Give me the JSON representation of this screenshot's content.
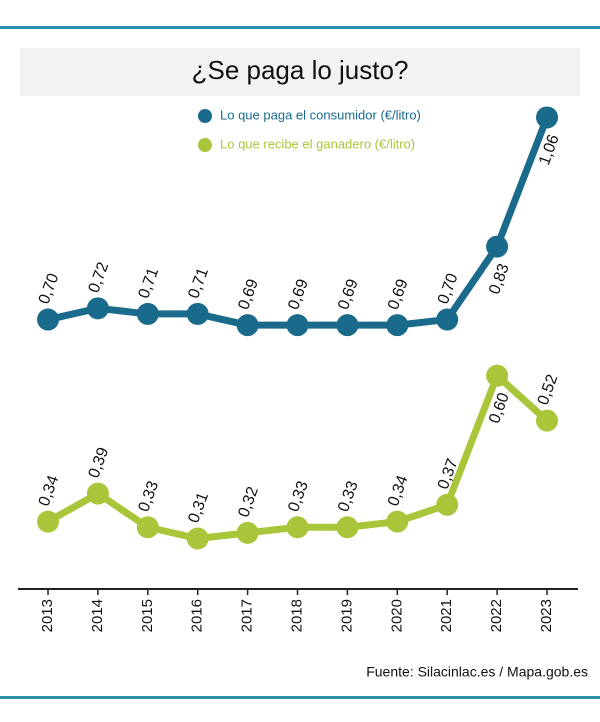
{
  "chart_data": {
    "type": "line",
    "title": "¿Se paga lo justo?",
    "source": "Fuente: Silacinlac.es / Mapa.gob.es",
    "categories": [
      "2013",
      "2014",
      "2015",
      "2016",
      "2017",
      "2018",
      "2019",
      "2020",
      "2021",
      "2022",
      "2023"
    ],
    "ylim": [
      0.22,
      1.1
    ],
    "series": [
      {
        "name": "Lo que paga el consumidor (€/litro)",
        "color": "#1a6a8c",
        "values": [
          0.7,
          0.72,
          0.71,
          0.71,
          0.69,
          0.69,
          0.69,
          0.69,
          0.7,
          0.83,
          1.06
        ],
        "value_labels": [
          "0,70",
          "0,72",
          "0,71",
          "0,71",
          "0,69",
          "0,69",
          "0,69",
          "0,69",
          "0,70",
          "0,83",
          "1,06"
        ]
      },
      {
        "name": "Lo que recibe el ganadero (€/litro)",
        "color": "#a9c63a",
        "values": [
          0.34,
          0.39,
          0.33,
          0.31,
          0.32,
          0.33,
          0.33,
          0.34,
          0.37,
          0.6,
          0.52
        ],
        "value_labels": [
          "0,34",
          "0,39",
          "0,33",
          "0,31",
          "0,32",
          "0,33",
          "0,33",
          "0,34",
          "0,37",
          "0,60",
          "0,52"
        ]
      }
    ]
  }
}
